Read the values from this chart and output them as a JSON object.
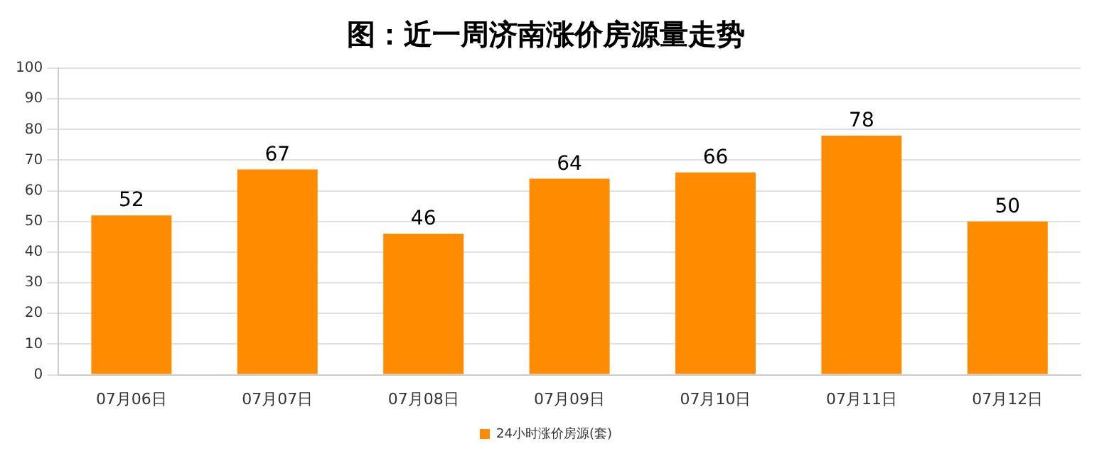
{
  "chart_data": {
    "type": "bar",
    "title": "图：近一周济南涨价房源量走势",
    "categories": [
      "07月06日",
      "07月07日",
      "07月08日",
      "07月09日",
      "07月10日",
      "07月11日",
      "07月12日"
    ],
    "series": [
      {
        "name": "24小时涨价房源(套)",
        "color": "#ff8c00",
        "values": [
          52,
          67,
          46,
          64,
          66,
          78,
          50
        ]
      }
    ],
    "ylim": [
      0,
      100
    ],
    "yticks": [
      0,
      10,
      20,
      30,
      40,
      50,
      60,
      70,
      80,
      90,
      100
    ],
    "grid": "y",
    "legend": "bottom",
    "data_labels": true
  }
}
